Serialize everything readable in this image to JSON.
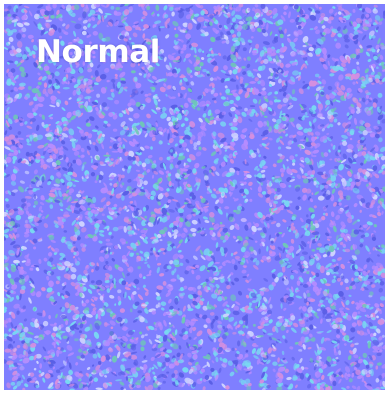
{
  "texture": {
    "map_type_label": "Normal",
    "colors": {
      "base": "#7f7fff",
      "violet": "#b58cff",
      "magenta": "#d58fe0",
      "cyan": "#79d8f2",
      "teal": "#6fc7b8",
      "deep_blue": "#5a5fe6",
      "pale": "#cfd3ff"
    }
  }
}
